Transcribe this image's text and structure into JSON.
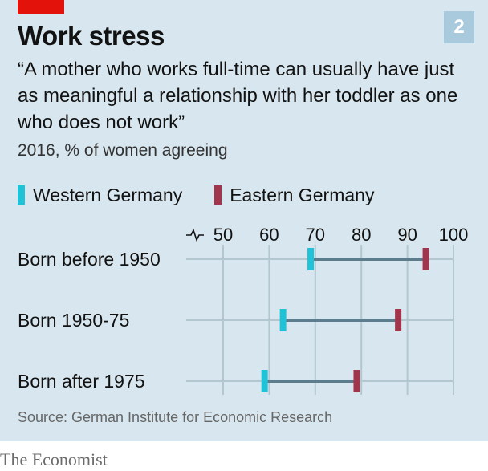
{
  "header": {
    "chart_number": "2",
    "title": "Work stress",
    "subtitle": "“A mother who works full-time can usually have just as meaningful a relationship with her toddler as one who does not work”",
    "unit": "2016, % of women agreeing"
  },
  "footer": {
    "source": "Source: German Institute for Economic Research",
    "logo": "The Economist"
  },
  "colors": {
    "background": "#d8e7ef",
    "western": "#1fc2d6",
    "eastern": "#a0354b",
    "connector": "#5d7c8c",
    "grid": "#b3c7d1",
    "accent": "#e3120b"
  },
  "chart_data": {
    "type": "dot-range",
    "title": "Work stress",
    "subtitle": "“A mother who works full-time can usually have just as meaningful a relationship with her toddler as one who does not work”",
    "ylabel": "2016, % of women agreeing",
    "categories": [
      "Born before 1950",
      "Born 1950-75",
      "Born after 1975"
    ],
    "series": [
      {
        "name": "Western Germany",
        "values": [
          69,
          63,
          59
        ]
      },
      {
        "name": "Eastern Germany",
        "values": [
          94,
          88,
          79
        ]
      }
    ],
    "xlim": [
      50,
      100
    ],
    "xticks": [
      50,
      60,
      70,
      80,
      90,
      100
    ],
    "axis_break": true,
    "grid": true,
    "legend": "top-left"
  }
}
